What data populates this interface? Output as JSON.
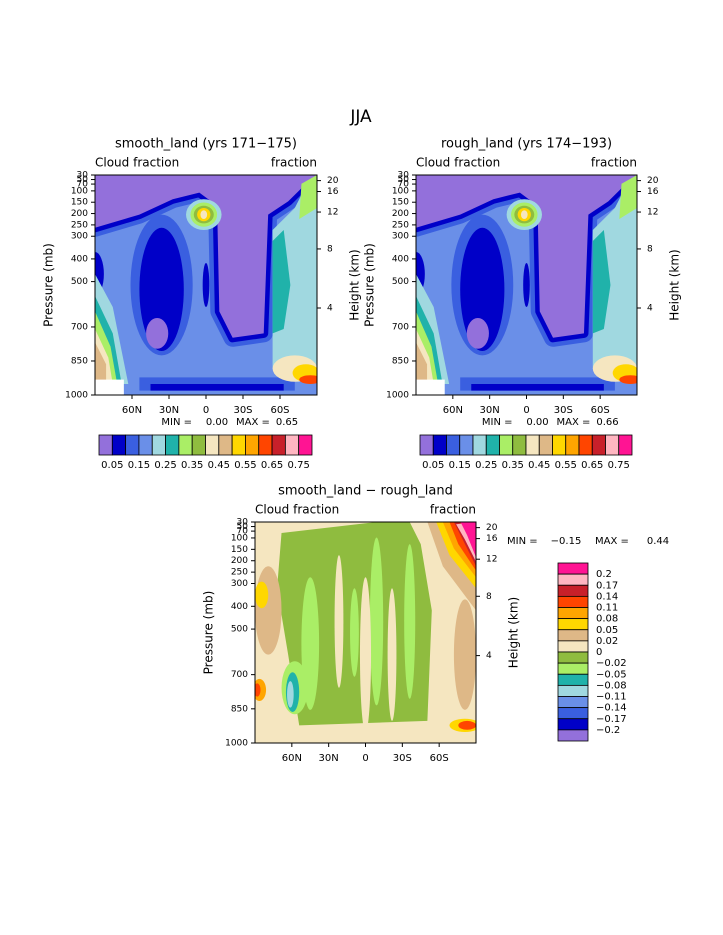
{
  "title": "JJA",
  "chart_data": [
    {
      "type": "contour",
      "title": "smooth_land (yrs 171−175)",
      "left_label": "Cloud fraction",
      "right_label": "fraction",
      "xlim": [
        90,
        -90
      ],
      "xticks": [
        {
          "value": 60,
          "label": "60N"
        },
        {
          "value": 30,
          "label": "30N"
        },
        0,
        {
          "value": -30,
          "label": "30S"
        },
        {
          "value": -60,
          "label": "60S"
        }
      ],
      "ylabel": "Pressure (mb)",
      "ylim": [
        1000,
        30
      ],
      "yticks": [
        30,
        50,
        70,
        100,
        150,
        200,
        250,
        300,
        400,
        500,
        700,
        850,
        1000
      ],
      "y2label": "Height (km)",
      "y2ticks": [
        4,
        8,
        12,
        16,
        20
      ],
      "min_label": "MIN =",
      "min": {
        "value": 0,
        "label": "0.00"
      },
      "max_label": "MAX =",
      "max": {
        "value": 0.65,
        "label": "0.65"
      },
      "colorbar": {
        "orientation": "horizontal",
        "colors": [
          "#9370db",
          "#0000c8",
          "#3a5fe0",
          "#6a8fe8",
          "#a0d8e0",
          "#20b2aa",
          "#aaee66",
          "#8fbc3f",
          "#f5e6c0",
          "#deb887",
          "#ffd700",
          "#ffa500",
          "#ff4500",
          "#c8202a",
          "#ffb6c1",
          "#ff1493"
        ],
        "ticks": [
          0.05,
          0.15,
          0.25,
          0.35,
          0.45,
          0.55,
          0.65,
          0.75
        ]
      }
    },
    {
      "type": "contour",
      "title": "rough_land (yrs 174−193)",
      "left_label": "Cloud fraction",
      "right_label": "fraction",
      "xlim": [
        90,
        -90
      ],
      "xticks": [
        {
          "value": 60,
          "label": "60N"
        },
        {
          "value": 30,
          "label": "30N"
        },
        0,
        {
          "value": -30,
          "label": "30S"
        },
        {
          "value": -60,
          "label": "60S"
        }
      ],
      "ylabel": "Pressure (mb)",
      "ylim": [
        1000,
        30
      ],
      "yticks": [
        30,
        50,
        70,
        100,
        150,
        200,
        250,
        300,
        400,
        500,
        700,
        850,
        1000
      ],
      "y2label": "Height (km)",
      "y2ticks": [
        4,
        8,
        12,
        16,
        20
      ],
      "min_label": "MIN =",
      "min": {
        "value": 0,
        "label": "0.00"
      },
      "max_label": "MAX =",
      "max": {
        "value": 0.66,
        "label": "0.66"
      },
      "colorbar": {
        "orientation": "horizontal",
        "colors": [
          "#9370db",
          "#0000c8",
          "#3a5fe0",
          "#6a8fe8",
          "#a0d8e0",
          "#20b2aa",
          "#aaee66",
          "#8fbc3f",
          "#f5e6c0",
          "#deb887",
          "#ffd700",
          "#ffa500",
          "#ff4500",
          "#c8202a",
          "#ffb6c1",
          "#ff1493"
        ],
        "ticks": [
          0.05,
          0.15,
          0.25,
          0.35,
          0.45,
          0.55,
          0.65,
          0.75
        ]
      }
    },
    {
      "type": "contour-diff",
      "title": "smooth_land − rough_land",
      "left_label": "Cloud fraction",
      "right_label": "fraction",
      "xlim": [
        90,
        -90
      ],
      "xticks": [
        {
          "value": 60,
          "label": "60N"
        },
        {
          "value": 30,
          "label": "30N"
        },
        0,
        {
          "value": -30,
          "label": "30S"
        },
        {
          "value": -60,
          "label": "60S"
        }
      ],
      "ylabel": "Pressure (mb)",
      "ylim": [
        1000,
        30
      ],
      "yticks": [
        30,
        50,
        70,
        100,
        150,
        200,
        250,
        300,
        400,
        500,
        700,
        850,
        1000
      ],
      "y2label": "Height (km)",
      "y2ticks": [
        4,
        8,
        12,
        16,
        20
      ],
      "min_label": "MIN =",
      "min": {
        "value": -0.15,
        "label": "−0.15"
      },
      "max_label": "MAX =",
      "max": {
        "value": 0.44,
        "label": "0.44"
      },
      "colorbar": {
        "orientation": "vertical",
        "colors": [
          "#ff1493",
          "#ffb6c1",
          "#c8202a",
          "#ff4500",
          "#ffa500",
          "#ffd700",
          "#deb887",
          "#f5e6c0",
          "#8fbc3f",
          "#aaee66",
          "#20b2aa",
          "#a0d8e0",
          "#6a8fe8",
          "#3a5fe0",
          "#0000c8",
          "#9370db"
        ],
        "ticks": [
          0.2,
          0.17,
          0.14,
          0.11,
          0.08,
          0.05,
          0.02,
          0,
          {
            "value": -0.02,
            "label": "−0.02"
          },
          {
            "value": -0.05,
            "label": "−0.05"
          },
          {
            "value": -0.08,
            "label": "−0.08"
          },
          {
            "value": -0.11,
            "label": "−0.11"
          },
          {
            "value": -0.14,
            "label": "−0.14"
          },
          {
            "value": -0.17,
            "label": "−0.17"
          },
          {
            "value": -0.2,
            "label": "−0.2"
          }
        ]
      }
    }
  ]
}
